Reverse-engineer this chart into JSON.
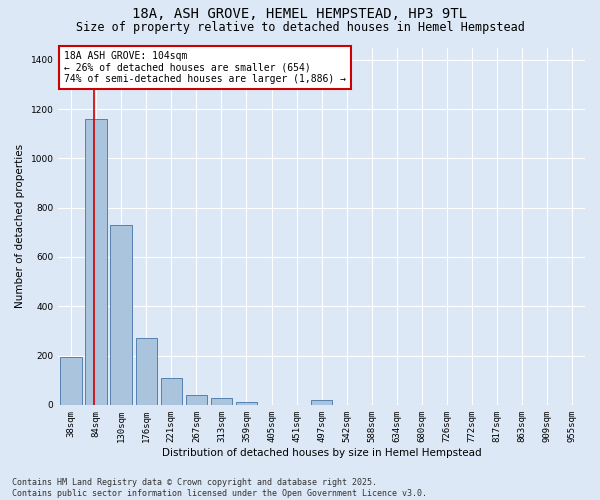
{
  "title": "18A, ASH GROVE, HEMEL HEMPSTEAD, HP3 9TL",
  "subtitle": "Size of property relative to detached houses in Hemel Hempstead",
  "xlabel": "Distribution of detached houses by size in Hemel Hempstead",
  "ylabel": "Number of detached properties",
  "categories": [
    "38sqm",
    "84sqm",
    "130sqm",
    "176sqm",
    "221sqm",
    "267sqm",
    "313sqm",
    "359sqm",
    "405sqm",
    "451sqm",
    "497sqm",
    "542sqm",
    "588sqm",
    "634sqm",
    "680sqm",
    "726sqm",
    "772sqm",
    "817sqm",
    "863sqm",
    "909sqm",
    "955sqm"
  ],
  "values": [
    195,
    1160,
    730,
    270,
    107,
    38,
    28,
    13,
    0,
    0,
    18,
    0,
    0,
    0,
    0,
    0,
    0,
    0,
    0,
    0,
    0
  ],
  "bar_color": "#aac4de",
  "bar_edge_color": "#4472a8",
  "annotation_text": "18A ASH GROVE: 104sqm\n← 26% of detached houses are smaller (654)\n74% of semi-detached houses are larger (1,886) →",
  "annotation_box_color": "#ffffff",
  "annotation_box_edge_color": "#cc0000",
  "footer": "Contains HM Land Registry data © Crown copyright and database right 2025.\nContains public sector information licensed under the Open Government Licence v3.0.",
  "ylim": [
    0,
    1450
  ],
  "yticks": [
    0,
    200,
    400,
    600,
    800,
    1000,
    1200,
    1400
  ],
  "bg_color": "#dce8f5",
  "grid_color": "#ffffff",
  "title_fontsize": 10,
  "subtitle_fontsize": 8.5,
  "axis_label_fontsize": 7.5,
  "tick_fontsize": 6.5,
  "annotation_fontsize": 7,
  "footer_fontsize": 6
}
